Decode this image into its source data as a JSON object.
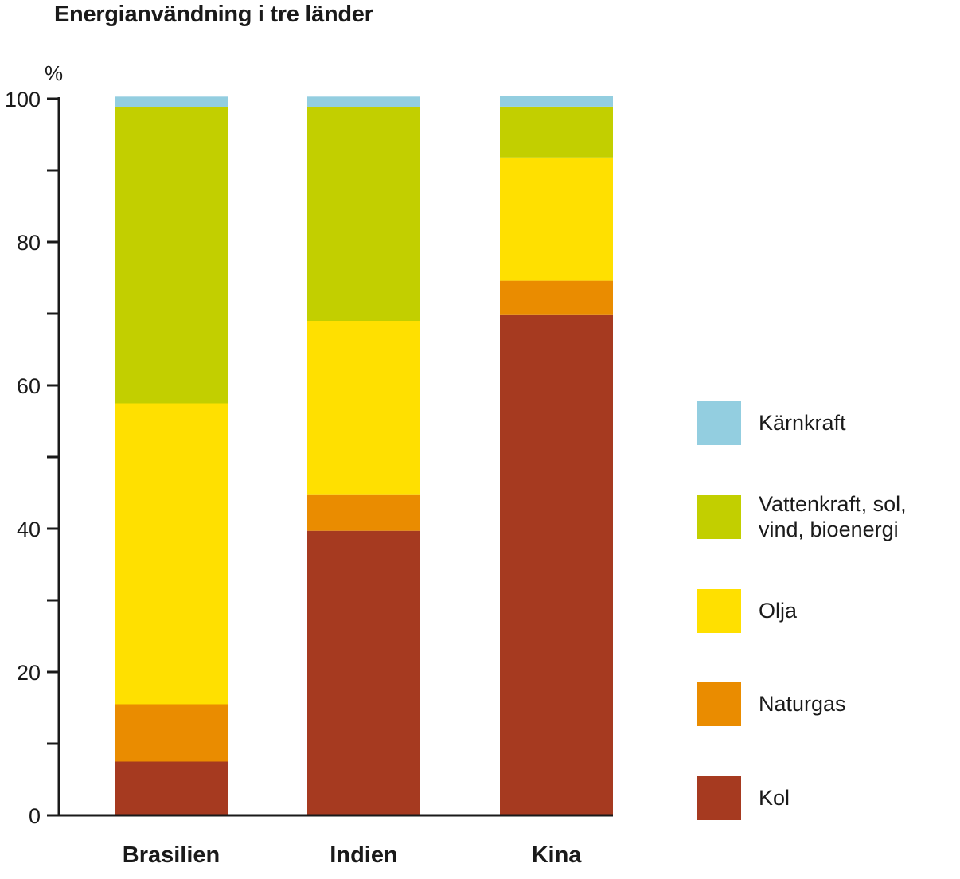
{
  "chart_data": {
    "type": "bar",
    "stacked": true,
    "title": "Energianvändning i tre länder",
    "ylabel": "%",
    "xlabel": "",
    "ylim": [
      0,
      100
    ],
    "yticks": [
      "0",
      "20",
      "40",
      "60",
      "80",
      "100"
    ],
    "categories": [
      "Brasilien",
      "Indien",
      "Kina"
    ],
    "series": [
      {
        "name": "Kol",
        "color": "#A63A20",
        "values": [
          7.5,
          39.7,
          69.8
        ]
      },
      {
        "name": "Naturgas",
        "color": "#EA8C00",
        "values": [
          8,
          5,
          4.8
        ]
      },
      {
        "name": "Olja",
        "color": "#FFE000",
        "values": [
          42,
          24.3,
          17.2
        ]
      },
      {
        "name": "Vattenkraft, sol,\nvind, bioenergi",
        "color": "#C2CF00",
        "values": [
          41.3,
          29.8,
          7.1
        ]
      },
      {
        "name": "Kärnkraft",
        "color": "#93CEE0",
        "values": [
          1.5,
          1.5,
          1.5
        ]
      }
    ],
    "legend": {
      "position": "right",
      "order": [
        "Kärnkraft",
        "Vattenkraft, sol,\nvind, bioenergi",
        "Olja",
        "Naturgas",
        "Kol"
      ]
    }
  }
}
